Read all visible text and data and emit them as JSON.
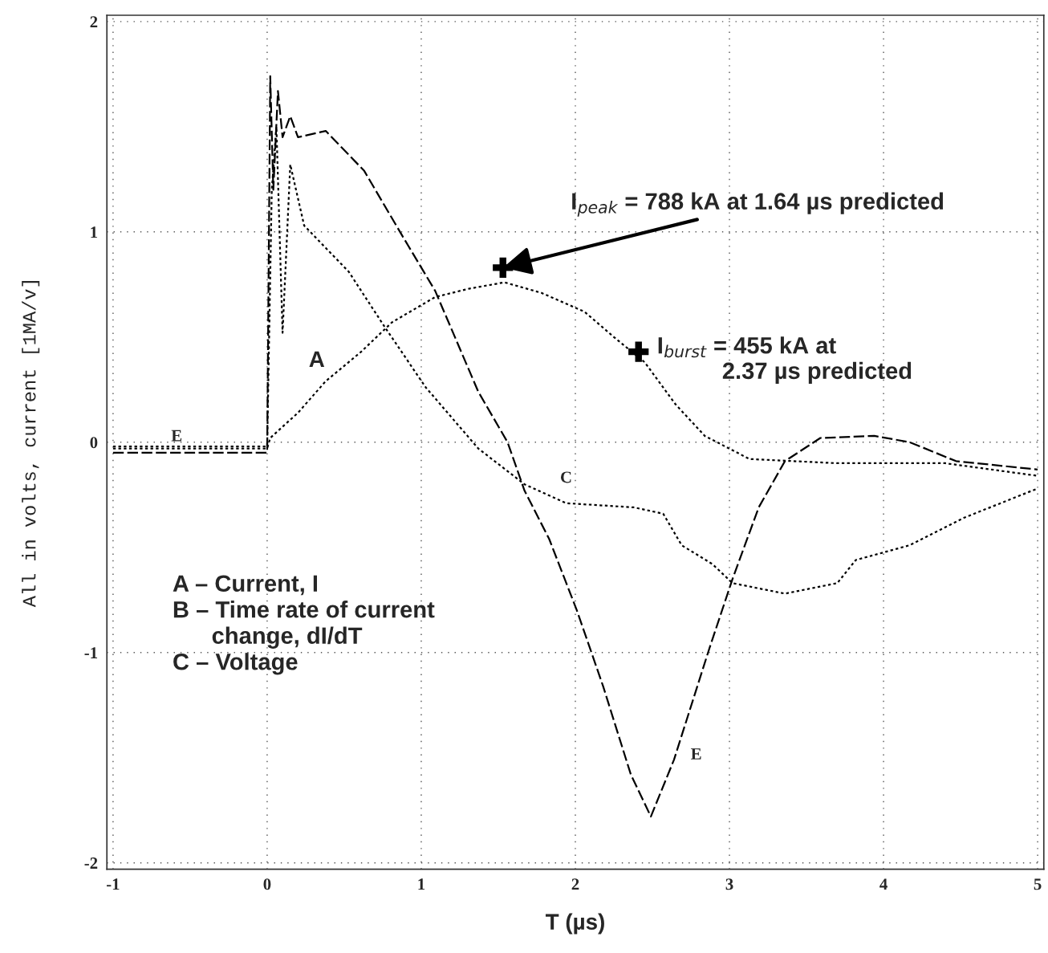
{
  "chart_data": {
    "type": "line",
    "xlabel": "T (µs)",
    "ylabel": "All in volts, current [1MA/v]",
    "xlim": [
      -1.04,
      5.04
    ],
    "ylim": [
      -2.03,
      2.03
    ],
    "xticks": [
      -1,
      0,
      1,
      2,
      3,
      4,
      5
    ],
    "yticks": [
      -2,
      -1,
      0,
      1,
      2
    ],
    "grid": true,
    "series": [
      {
        "color": "#000000",
        "line_style": "dotted",
        "x": [
          -1,
          -0.5,
          0,
          0.02,
          0.2,
          0.38,
          0.61,
          0.81,
          1.09,
          1.31,
          1.54,
          1.78,
          2.06,
          2.25,
          2.45,
          2.65,
          2.84,
          3.13,
          3.7,
          4.4,
          5.0
        ],
        "values": [
          -0.03,
          -0.03,
          -0.03,
          0.02,
          0.14,
          0.29,
          0.43,
          0.57,
          0.69,
          0.73,
          0.76,
          0.71,
          0.62,
          0.5,
          0.38,
          0.18,
          0.03,
          -0.08,
          -0.1,
          -0.1,
          -0.16
        ]
      },
      {
        "color": "#000000",
        "line_style": "dashed",
        "x": [
          -1,
          -0.5,
          0,
          0.02,
          0.04,
          0.07,
          0.1,
          0.15,
          0.2,
          0.38,
          0.63,
          0.87,
          1.09,
          1.37,
          1.56,
          1.67,
          1.83,
          2.01,
          2.18,
          2.36,
          2.49,
          2.64,
          2.87,
          3.02,
          3.19,
          3.36,
          3.59,
          3.94,
          4.17,
          4.47,
          5.0
        ],
        "values": [
          -0.05,
          -0.05,
          -0.05,
          1.74,
          1.2,
          1.67,
          1.45,
          1.55,
          1.45,
          1.48,
          1.29,
          0.99,
          0.72,
          0.24,
          0.0,
          -0.23,
          -0.46,
          -0.8,
          -1.16,
          -1.58,
          -1.78,
          -1.51,
          -0.98,
          -0.65,
          -0.31,
          -0.09,
          0.02,
          0.03,
          0.0,
          -0.09,
          -0.13
        ]
      },
      {
        "color": "#000000",
        "line_style": "dotted",
        "x": [
          -1,
          -0.5,
          0,
          0.03,
          0.06,
          0.1,
          0.15,
          0.24,
          0.53,
          0.77,
          1.03,
          1.37,
          1.67,
          1.94,
          2.38,
          2.57,
          2.69,
          2.89,
          3.02,
          3.36,
          3.7,
          3.82,
          4.17,
          4.52,
          5.0
        ],
        "values": [
          -0.02,
          -0.02,
          -0.02,
          1.2,
          1.5,
          0.52,
          1.32,
          1.03,
          0.81,
          0.54,
          0.26,
          -0.03,
          -0.2,
          -0.29,
          -0.31,
          -0.34,
          -0.49,
          -0.58,
          -0.67,
          -0.72,
          -0.67,
          -0.56,
          -0.49,
          -0.36,
          -0.22
        ]
      },
      {
        "type": "scatter",
        "color": "#000000",
        "marker": "cross",
        "x": [
          1.53,
          2.41
        ],
        "values": [
          0.83,
          0.43
        ]
      }
    ],
    "annotations": [
      {
        "text": "I$_{peak}$ = 788 kA at 1.64 µs predicted",
        "x": 1.53,
        "y": 0.83
      },
      {
        "text": "I$_{burst}$ = 455 kA at\n          2.37 µs predicted",
        "x": 2.41,
        "y": 0.43
      },
      {
        "text": "A",
        "x": 0.38,
        "y": 0.29
      },
      {
        "text": "E",
        "x": -0.5,
        "y": -0.05
      },
      {
        "text": "C",
        "x": 1.94,
        "y": -0.29
      },
      {
        "text": "E",
        "x": 2.64,
        "y": -1.51
      },
      "A – Current, I\nB – Time rate of current\n      change, dI/dT\nC – Voltage"
    ]
  }
}
